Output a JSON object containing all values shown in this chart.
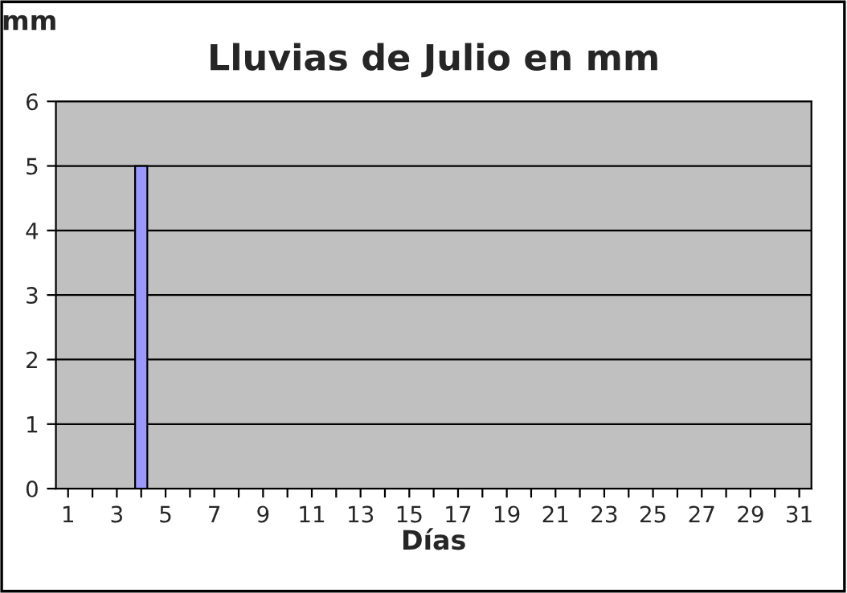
{
  "chart_data": {
    "type": "bar",
    "title": "Lluvias de Julio en mm",
    "xlabel": "Días",
    "ylabel": "mm",
    "categories": [
      "1",
      null,
      "3",
      null,
      "5",
      null,
      "7",
      null,
      "9",
      null,
      "11",
      null,
      "13",
      null,
      "15",
      null,
      "17",
      null,
      "19",
      null,
      "21",
      null,
      "23",
      null,
      "25",
      null,
      "27",
      null,
      "29",
      null,
      "31"
    ],
    "series": [
      {
        "color": "#9999ff",
        "values": [
          0,
          0,
          0,
          5,
          0,
          0,
          0,
          0,
          0,
          0,
          0,
          0,
          0,
          0,
          0,
          0,
          0,
          0,
          0,
          0,
          0,
          0,
          0,
          0,
          0,
          0,
          0,
          0,
          0,
          0,
          0
        ]
      }
    ],
    "ylim": [
      0,
      6
    ],
    "yticks": [
      0,
      1,
      2,
      3,
      4,
      5,
      6
    ],
    "grid": "y",
    "legend": false
  }
}
